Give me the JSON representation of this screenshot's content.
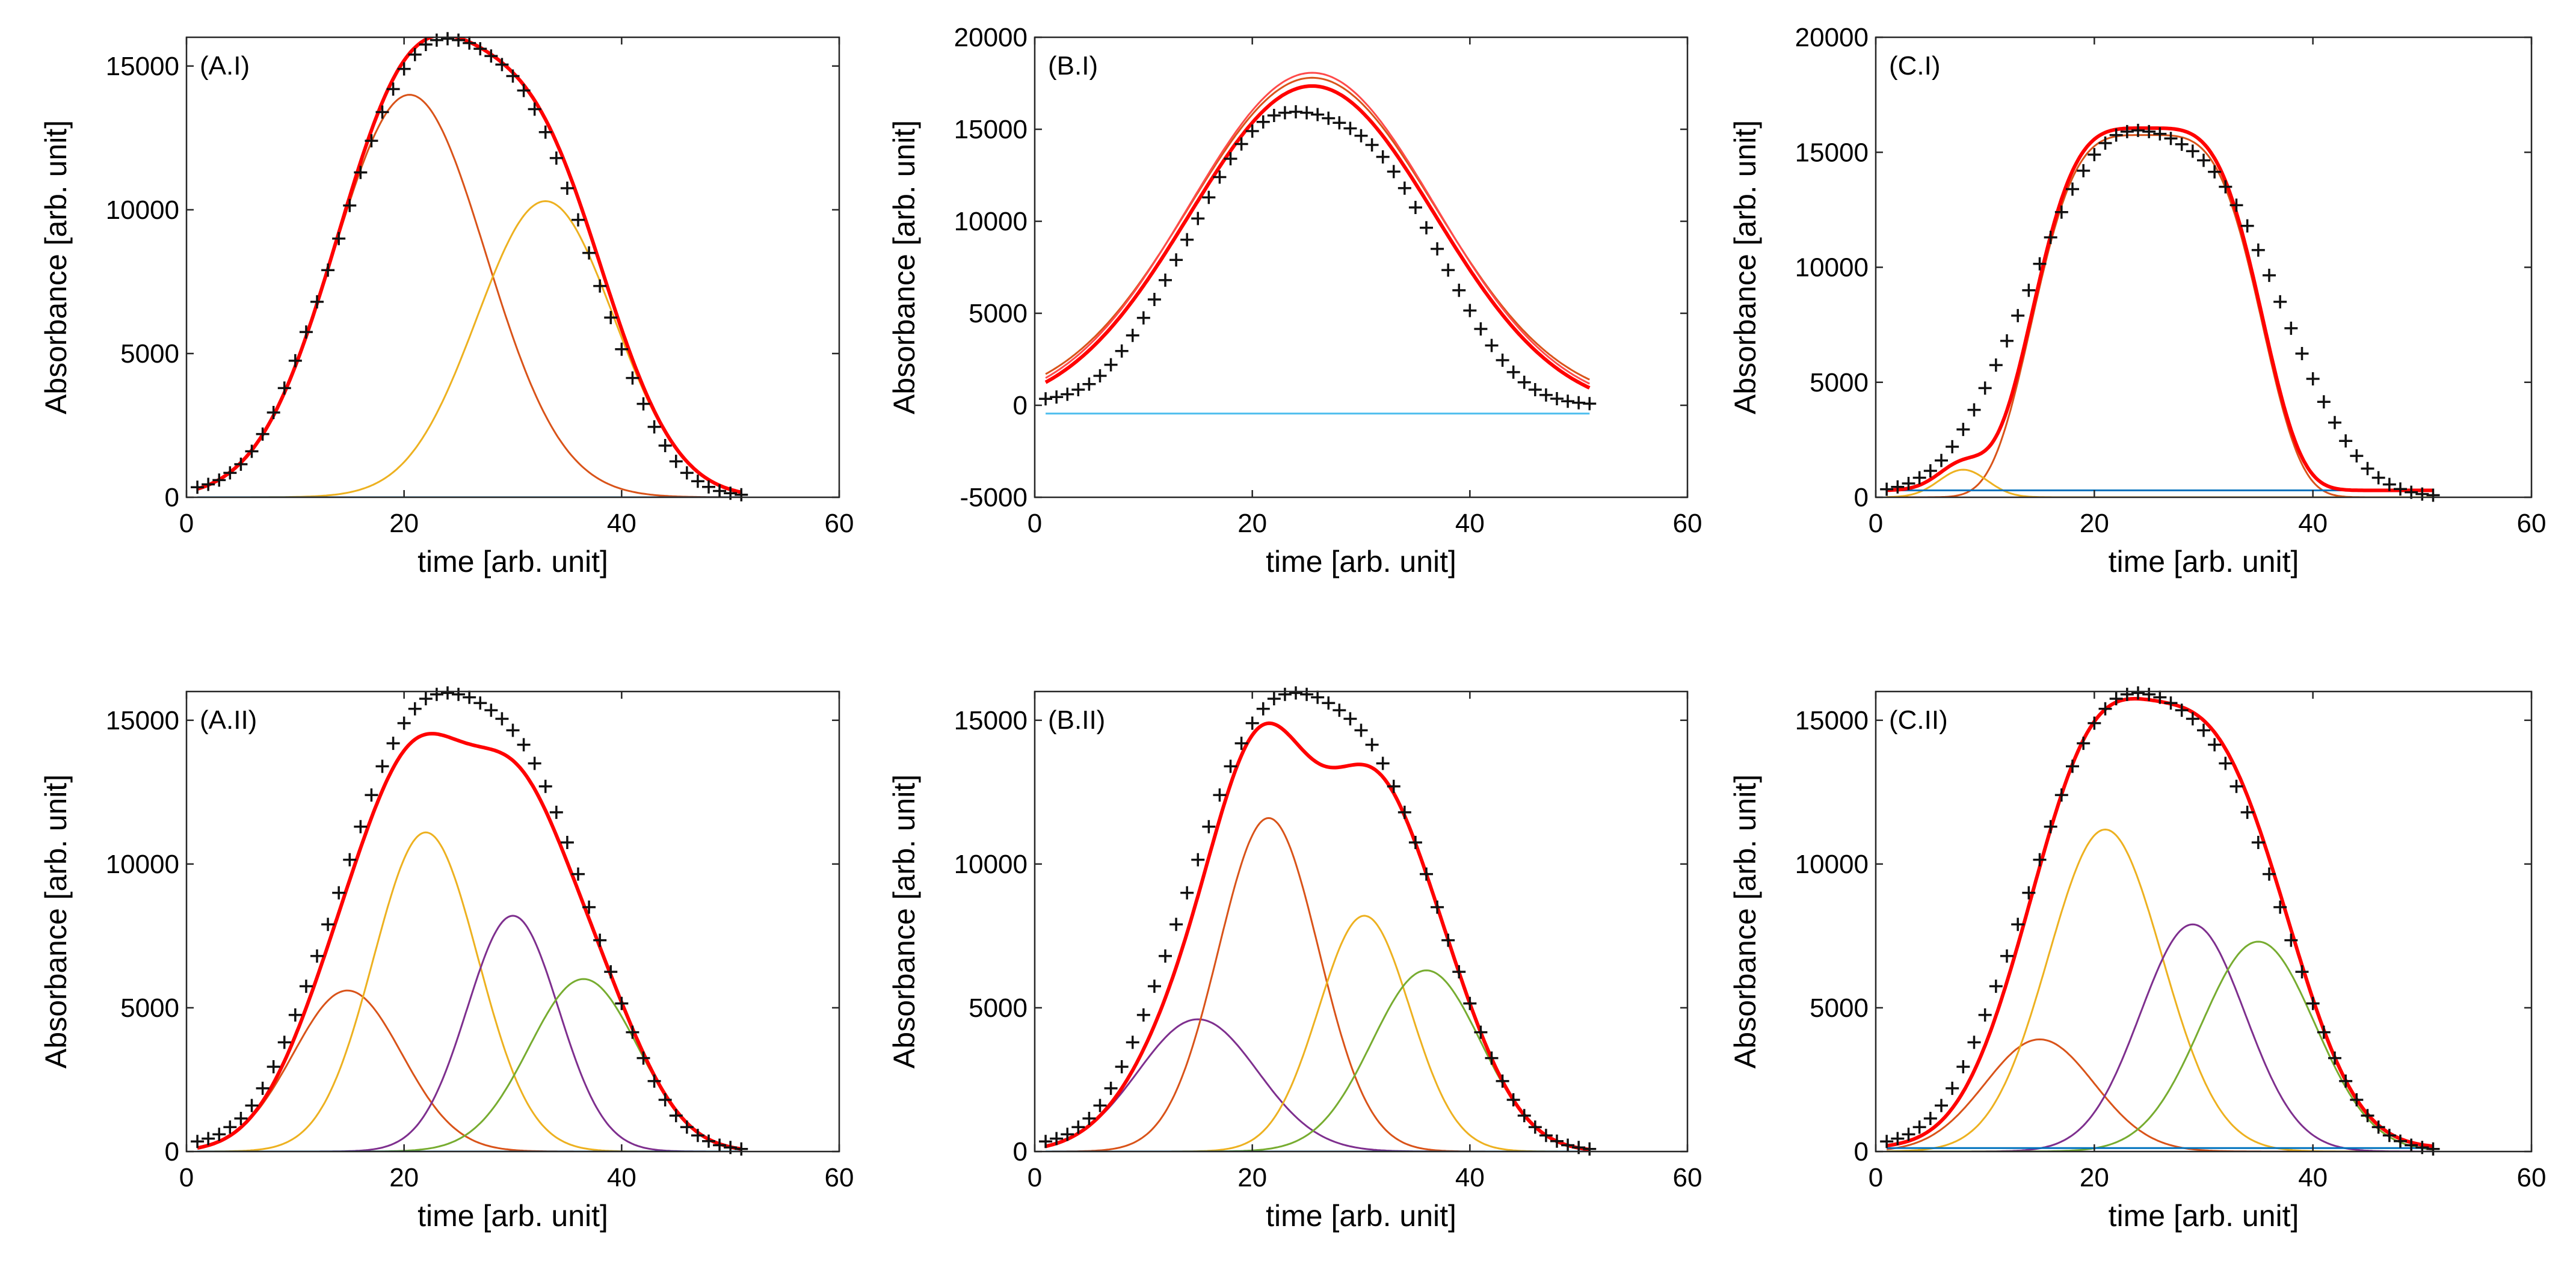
{
  "figure": {
    "description_free": true
  },
  "chart_data": [
    {
      "type": "line",
      "panel_label": "(A.I)",
      "xlabel": "time [arb. unit]",
      "ylabel": "Absorbance [arb. unit]",
      "xlim": [
        0,
        60
      ],
      "ylim": [
        0,
        16000
      ],
      "xticks": [
        "0",
        "20",
        "40",
        "60"
      ],
      "xtick_values": [
        0,
        20,
        40,
        60
      ],
      "yticks": [
        "0",
        "5000",
        "10000",
        "15000"
      ],
      "ytick_values": [
        0,
        5000,
        10000,
        15000
      ],
      "data_marker": "+",
      "data_x": [
        1,
        2,
        3,
        4,
        5,
        6,
        7,
        8,
        9,
        10,
        11,
        12,
        13,
        14,
        15,
        16,
        17,
        18,
        19,
        20,
        21,
        22,
        23,
        24,
        25,
        26,
        27,
        28,
        29,
        30,
        31,
        32,
        33,
        34,
        35,
        36,
        37,
        38,
        39,
        40,
        41,
        42,
        43,
        44,
        45,
        46,
        47,
        48,
        49,
        50,
        51
      ],
      "data_y": [
        350,
        450,
        600,
        850,
        1150,
        1600,
        2200,
        2950,
        3800,
        4750,
        5750,
        6800,
        7900,
        9000,
        10150,
        11300,
        12400,
        13400,
        14200,
        14900,
        15400,
        15750,
        15900,
        15950,
        15900,
        15800,
        15600,
        15350,
        15050,
        14650,
        14150,
        13500,
        12700,
        11800,
        10750,
        9650,
        8500,
        7350,
        6250,
        5150,
        4150,
        3250,
        2450,
        1800,
        1250,
        850,
        560,
        360,
        220,
        140,
        90
      ],
      "series": [
        {
          "name": "fit",
          "color": "#ff0000",
          "kind": "sum"
        },
        {
          "name": "component 1",
          "color": "#d95319",
          "amp": 14000,
          "center": 20.5,
          "sigma": 7.0
        },
        {
          "name": "component 2",
          "color": "#edb120",
          "amp": 10300,
          "center": 33.0,
          "sigma": 6.3
        },
        {
          "name": "baseline",
          "color": "#0072bd",
          "kind": "baseline",
          "level": 0
        }
      ]
    },
    {
      "type": "line",
      "panel_label": "(B.I)",
      "xlabel": "time [arb. unit]",
      "ylabel": "Absorbance [arb. unit]",
      "xlim": [
        0,
        60
      ],
      "ylim": [
        -5000,
        20000
      ],
      "xticks": [
        "0",
        "20",
        "40",
        "60"
      ],
      "xtick_values": [
        0,
        20,
        40,
        60
      ],
      "yticks": [
        "-5000",
        "0",
        "5000",
        "10000",
        "15000",
        "20000"
      ],
      "ytick_values": [
        -5000,
        0,
        5000,
        10000,
        15000,
        20000
      ],
      "data_marker": "+",
      "data_x": [
        1,
        2,
        3,
        4,
        5,
        6,
        7,
        8,
        9,
        10,
        11,
        12,
        13,
        14,
        15,
        16,
        17,
        18,
        19,
        20,
        21,
        22,
        23,
        24,
        25,
        26,
        27,
        28,
        29,
        30,
        31,
        32,
        33,
        34,
        35,
        36,
        37,
        38,
        39,
        40,
        41,
        42,
        43,
        44,
        45,
        46,
        47,
        48,
        49,
        50,
        51
      ],
      "data_y": [
        350,
        450,
        600,
        850,
        1150,
        1600,
        2200,
        2950,
        3800,
        4750,
        5750,
        6800,
        7900,
        9000,
        10150,
        11300,
        12400,
        13400,
        14200,
        14900,
        15400,
        15750,
        15900,
        15950,
        15900,
        15800,
        15600,
        15350,
        15050,
        14650,
        14150,
        13500,
        12700,
        11800,
        10750,
        9650,
        8500,
        7350,
        6250,
        5150,
        4150,
        3250,
        2450,
        1800,
        1250,
        850,
        560,
        360,
        220,
        140,
        90
      ],
      "series": [
        {
          "name": "fit",
          "color": "#ff0000",
          "kind": "sum"
        },
        {
          "name": "component 1",
          "color": "#d95319",
          "amp": 17800,
          "center": 25.5,
          "sigma": 11.3
        },
        {
          "name": "baseline",
          "color": "#4dbeee",
          "kind": "baseline",
          "level": -450
        }
      ]
    },
    {
      "type": "line",
      "panel_label": "(C.I)",
      "xlabel": "time [arb. unit]",
      "ylabel": "Absorbance [arb. unit]",
      "xlim": [
        0,
        60
      ],
      "ylim": [
        0,
        20000
      ],
      "xticks": [
        "0",
        "20",
        "40",
        "60"
      ],
      "xtick_values": [
        0,
        20,
        40,
        60
      ],
      "yticks": [
        "0",
        "5000",
        "10000",
        "15000",
        "20000"
      ],
      "ytick_values": [
        0,
        5000,
        10000,
        15000,
        20000
      ],
      "data_marker": "+",
      "data_x": [
        1,
        2,
        3,
        4,
        5,
        6,
        7,
        8,
        9,
        10,
        11,
        12,
        13,
        14,
        15,
        16,
        17,
        18,
        19,
        20,
        21,
        22,
        23,
        24,
        25,
        26,
        27,
        28,
        29,
        30,
        31,
        32,
        33,
        34,
        35,
        36,
        37,
        38,
        39,
        40,
        41,
        42,
        43,
        44,
        45,
        46,
        47,
        48,
        49,
        50,
        51
      ],
      "data_y": [
        350,
        450,
        600,
        850,
        1150,
        1600,
        2200,
        2950,
        3800,
        4750,
        5750,
        6800,
        7900,
        9000,
        10150,
        11300,
        12400,
        13400,
        14200,
        14900,
        15400,
        15750,
        15900,
        15950,
        15900,
        15800,
        15600,
        15350,
        15050,
        14650,
        14150,
        13500,
        12700,
        11800,
        10750,
        9650,
        8500,
        7350,
        6250,
        5150,
        4150,
        3250,
        2450,
        1800,
        1250,
        850,
        560,
        360,
        220,
        140,
        90
      ],
      "series": [
        {
          "name": "fit",
          "color": "#ff0000",
          "kind": "sum"
        },
        {
          "name": "component 1",
          "color": "#d95319",
          "amp": 15750,
          "center": 24.8,
          "sigma": 9.6,
          "power": 4
        },
        {
          "name": "component 2",
          "color": "#edb120",
          "amp": 1200,
          "center": 8.0,
          "sigma": 2.2
        },
        {
          "name": "baseline",
          "color": "#0072bd",
          "kind": "baseline",
          "level": 300
        }
      ]
    },
    {
      "type": "line",
      "panel_label": "(A.II)",
      "xlabel": "time [arb. unit]",
      "ylabel": "Absorbance [arb. unit]",
      "xlim": [
        0,
        60
      ],
      "ylim": [
        0,
        16000
      ],
      "xticks": [
        "0",
        "20",
        "40",
        "60"
      ],
      "xtick_values": [
        0,
        20,
        40,
        60
      ],
      "yticks": [
        "0",
        "5000",
        "10000",
        "15000"
      ],
      "ytick_values": [
        0,
        5000,
        10000,
        15000
      ],
      "data_marker": "+",
      "data_x": [
        1,
        2,
        3,
        4,
        5,
        6,
        7,
        8,
        9,
        10,
        11,
        12,
        13,
        14,
        15,
        16,
        17,
        18,
        19,
        20,
        21,
        22,
        23,
        24,
        25,
        26,
        27,
        28,
        29,
        30,
        31,
        32,
        33,
        34,
        35,
        36,
        37,
        38,
        39,
        40,
        41,
        42,
        43,
        44,
        45,
        46,
        47,
        48,
        49,
        50,
        51
      ],
      "data_y": [
        350,
        450,
        600,
        850,
        1150,
        1600,
        2200,
        2950,
        3800,
        4750,
        5750,
        6800,
        7900,
        9000,
        10150,
        11300,
        12400,
        13400,
        14200,
        14900,
        15400,
        15750,
        15900,
        15950,
        15900,
        15800,
        15600,
        15350,
        15050,
        14650,
        14150,
        13500,
        12700,
        11800,
        10750,
        9650,
        8500,
        7350,
        6250,
        5150,
        4150,
        3250,
        2450,
        1800,
        1250,
        850,
        560,
        360,
        220,
        140,
        90
      ],
      "series": [
        {
          "name": "fit",
          "color": "#ff0000",
          "kind": "sum"
        },
        {
          "name": "component 1",
          "color": "#d95319",
          "amp": 5600,
          "center": 14.8,
          "sigma": 5.0
        },
        {
          "name": "component 2",
          "color": "#edb120",
          "amp": 11100,
          "center": 22.0,
          "sigma": 4.8
        },
        {
          "name": "component 3",
          "color": "#7e2f8e",
          "amp": 8200,
          "center": 30.0,
          "sigma": 4.2
        },
        {
          "name": "component 4",
          "color": "#77ac30",
          "amp": 6000,
          "center": 36.5,
          "sigma": 5.0
        },
        {
          "name": "baseline",
          "color": "#0072bd",
          "kind": "baseline",
          "level": 0
        }
      ]
    },
    {
      "type": "line",
      "panel_label": "(B.II)",
      "xlabel": "time [arb. unit]",
      "ylabel": "Absorbance [arb. unit]",
      "xlim": [
        0,
        60
      ],
      "ylim": [
        0,
        16000
      ],
      "xticks": [
        "0",
        "20",
        "40",
        "60"
      ],
      "xtick_values": [
        0,
        20,
        40,
        60
      ],
      "yticks": [
        "0",
        "5000",
        "10000",
        "15000"
      ],
      "ytick_values": [
        0,
        5000,
        10000,
        15000
      ],
      "data_marker": "+",
      "data_x": [
        1,
        2,
        3,
        4,
        5,
        6,
        7,
        8,
        9,
        10,
        11,
        12,
        13,
        14,
        15,
        16,
        17,
        18,
        19,
        20,
        21,
        22,
        23,
        24,
        25,
        26,
        27,
        28,
        29,
        30,
        31,
        32,
        33,
        34,
        35,
        36,
        37,
        38,
        39,
        40,
        41,
        42,
        43,
        44,
        45,
        46,
        47,
        48,
        49,
        50,
        51
      ],
      "data_y": [
        350,
        450,
        600,
        850,
        1150,
        1600,
        2200,
        2950,
        3800,
        4750,
        5750,
        6800,
        7900,
        9000,
        10150,
        11300,
        12400,
        13400,
        14200,
        14900,
        15400,
        15750,
        15900,
        15950,
        15900,
        15800,
        15600,
        15350,
        15050,
        14650,
        14150,
        13500,
        12700,
        11800,
        10750,
        9650,
        8500,
        7350,
        6250,
        5150,
        4150,
        3250,
        2450,
        1800,
        1250,
        850,
        560,
        360,
        220,
        140,
        90
      ],
      "series": [
        {
          "name": "fit",
          "color": "#ff0000",
          "kind": "sum"
        },
        {
          "name": "component 1",
          "color": "#7e2f8e",
          "amp": 4600,
          "center": 15.0,
          "sigma": 5.5
        },
        {
          "name": "component 2",
          "color": "#d95319",
          "amp": 11600,
          "center": 21.5,
          "sigma": 4.6
        },
        {
          "name": "component 3",
          "color": "#edb120",
          "amp": 8200,
          "center": 30.3,
          "sigma": 4.2
        },
        {
          "name": "component 4",
          "color": "#77ac30",
          "amp": 6300,
          "center": 36.0,
          "sigma": 5.0
        },
        {
          "name": "baseline",
          "color": "#0072bd",
          "kind": "baseline",
          "level": 0
        }
      ]
    },
    {
      "type": "line",
      "panel_label": "(C.II)",
      "xlabel": "time [arb. unit]",
      "ylabel": "Absorbance [arb. unit]",
      "xlim": [
        0,
        60
      ],
      "ylim": [
        0,
        16000
      ],
      "xticks": [
        "0",
        "20",
        "40",
        "60"
      ],
      "xtick_values": [
        0,
        20,
        40,
        60
      ],
      "yticks": [
        "0",
        "5000",
        "10000",
        "15000"
      ],
      "ytick_values": [
        0,
        5000,
        10000,
        15000
      ],
      "data_marker": "+",
      "data_x": [
        1,
        2,
        3,
        4,
        5,
        6,
        7,
        8,
        9,
        10,
        11,
        12,
        13,
        14,
        15,
        16,
        17,
        18,
        19,
        20,
        21,
        22,
        23,
        24,
        25,
        26,
        27,
        28,
        29,
        30,
        31,
        32,
        33,
        34,
        35,
        36,
        37,
        38,
        39,
        40,
        41,
        42,
        43,
        44,
        45,
        46,
        47,
        48,
        49,
        50,
        51
      ],
      "data_y": [
        350,
        450,
        600,
        850,
        1150,
        1600,
        2200,
        2950,
        3800,
        4750,
        5750,
        6800,
        7900,
        9000,
        10150,
        11300,
        12400,
        13400,
        14200,
        14900,
        15400,
        15750,
        15900,
        15950,
        15900,
        15800,
        15600,
        15350,
        15050,
        14650,
        14150,
        13500,
        12700,
        11800,
        10750,
        9650,
        8500,
        7350,
        6250,
        5150,
        4150,
        3250,
        2450,
        1800,
        1250,
        850,
        560,
        360,
        220,
        140,
        90
      ],
      "series": [
        {
          "name": "fit",
          "color": "#ff0000",
          "kind": "sum"
        },
        {
          "name": "component 1",
          "color": "#d95319",
          "amp": 3900,
          "center": 15.0,
          "sigma": 5.0
        },
        {
          "name": "component 2",
          "color": "#edb120",
          "amp": 11200,
          "center": 21.0,
          "sigma": 5.2
        },
        {
          "name": "component 3",
          "color": "#7e2f8e",
          "amp": 7900,
          "center": 29.0,
          "sigma": 4.8
        },
        {
          "name": "component 4",
          "color": "#77ac30",
          "amp": 7300,
          "center": 35.0,
          "sigma": 5.2
        },
        {
          "name": "baseline",
          "color": "#0072bd",
          "kind": "baseline",
          "level": 120
        }
      ]
    }
  ]
}
